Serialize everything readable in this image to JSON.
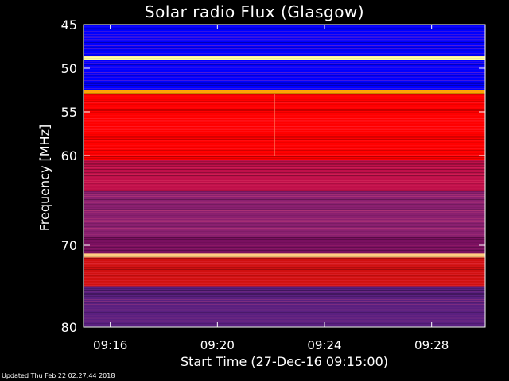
{
  "chart_data": {
    "type": "heatmap",
    "title": "Solar radio Flux (Glasgow)",
    "xlabel": "Start Time (27-Dec-16 09:15:00)",
    "ylabel": "Frequency [MHz]",
    "x_ticks": [
      "09:16",
      "09:20",
      "09:24",
      "09:28"
    ],
    "x_tick_minutes": [
      1,
      5,
      9,
      13
    ],
    "xlim_minutes": [
      0,
      15
    ],
    "y_ticks": [
      45,
      50,
      55,
      60,
      70,
      80
    ],
    "ylim": [
      45,
      80
    ],
    "y_scale": "linear-compressed",
    "colormap": [
      "#000080",
      "#0000ff",
      "#6a0dad",
      "#ff0000",
      "#ffa500",
      "#ffff80"
    ],
    "bands": [
      {
        "f0": 45.0,
        "f1": 48.5,
        "color": "#0000ff"
      },
      {
        "f0": 48.5,
        "f1": 49.0,
        "color": "#ffffa0"
      },
      {
        "f0": 49.0,
        "f1": 52.5,
        "color": "#0000ff"
      },
      {
        "f0": 52.5,
        "f1": 53.0,
        "color": "#ffa500"
      },
      {
        "f0": 53.0,
        "f1": 60.5,
        "color": "#ff0000"
      },
      {
        "f0": 60.5,
        "f1": 64.0,
        "color": "#c0104a"
      },
      {
        "f0": 64.0,
        "f1": 69.0,
        "color": "#8a2070"
      },
      {
        "f0": 69.0,
        "f1": 71.0,
        "color": "#7a1060"
      },
      {
        "f0": 71.0,
        "f1": 71.5,
        "color": "#ffd080"
      },
      {
        "f0": 71.5,
        "f1": 75.0,
        "color": "#d01010"
      },
      {
        "f0": 75.0,
        "f1": 80.0,
        "color": "#5a2080"
      }
    ]
  },
  "footer": "Updated Thu Feb 22 02:27:44 2018"
}
